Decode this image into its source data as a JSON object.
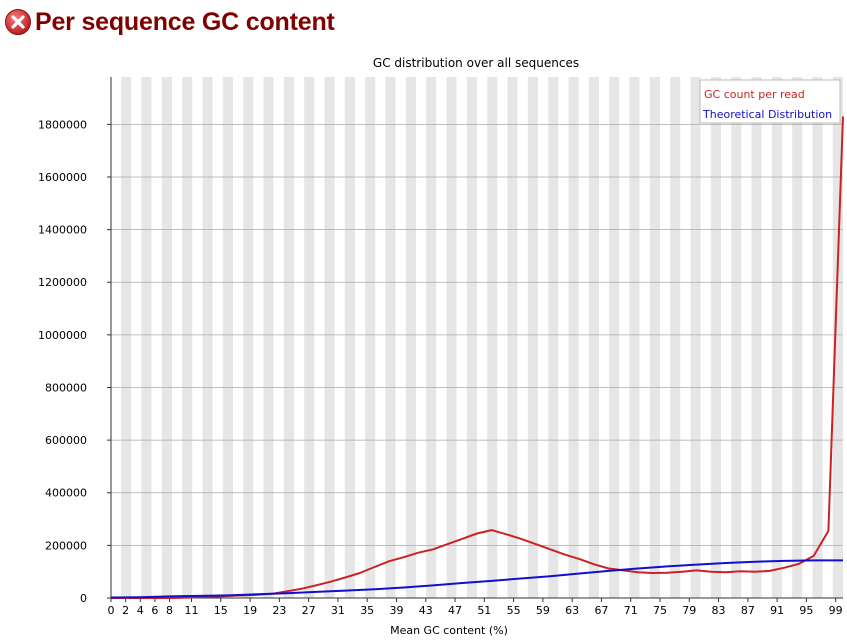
{
  "header": {
    "title": "Per sequence GC content",
    "status_icon": "error-icon",
    "status_color": "#cc2222"
  },
  "chart_data": {
    "type": "line",
    "title": "GC distribution over all sequences",
    "xlabel": "Mean GC content (%)",
    "ylabel": "",
    "xlim": [
      0,
      100
    ],
    "ylim": [
      0,
      1980000
    ],
    "grid": true,
    "legend_position": "top-right",
    "yticks": [
      0,
      200000,
      400000,
      600000,
      800000,
      1000000,
      1200000,
      1400000,
      1600000,
      1800000
    ],
    "xtick_labels": [
      "0",
      "2",
      "4",
      "6",
      "8",
      "11",
      "15",
      "19",
      "23",
      "27",
      "31",
      "35",
      "39",
      "43",
      "47",
      "51",
      "55",
      "59",
      "63",
      "67",
      "71",
      "75",
      "79",
      "83",
      "87",
      "91",
      "95",
      "99"
    ],
    "series": [
      {
        "name": "GC count per read",
        "color": "#cc2222",
        "x": [
          0,
          2,
          4,
          6,
          8,
          10,
          12,
          14,
          16,
          18,
          20,
          22,
          24,
          26,
          28,
          30,
          32,
          34,
          36,
          38,
          40,
          42,
          44,
          46,
          48,
          50,
          52,
          54,
          56,
          58,
          60,
          62,
          64,
          66,
          68,
          70,
          72,
          74,
          76,
          78,
          80,
          82,
          84,
          86,
          88,
          90,
          92,
          94,
          96,
          98,
          100
        ],
        "y": [
          0,
          0,
          0,
          0,
          0,
          1000,
          3000,
          5000,
          8000,
          10000,
          12000,
          16000,
          25000,
          35000,
          48000,
          62000,
          78000,
          95000,
          118000,
          140000,
          155000,
          172000,
          185000,
          205000,
          225000,
          245000,
          258000,
          242000,
          225000,
          205000,
          185000,
          165000,
          148000,
          128000,
          112000,
          105000,
          98000,
          95000,
          96000,
          100000,
          105000,
          100000,
          98000,
          102000,
          100000,
          103000,
          115000,
          130000,
          160000,
          255000,
          1830000
        ]
      },
      {
        "name": "Theoretical Distribution",
        "color": "#1010cc",
        "x": [
          0,
          4,
          8,
          12,
          16,
          20,
          24,
          28,
          32,
          36,
          40,
          44,
          48,
          52,
          56,
          60,
          64,
          68,
          72,
          76,
          80,
          84,
          88,
          92,
          96,
          100
        ],
        "y": [
          2000,
          3000,
          6000,
          8000,
          10000,
          14000,
          18000,
          23000,
          28000,
          33000,
          40000,
          48000,
          57000,
          65000,
          74000,
          83000,
          93000,
          103000,
          112000,
          120000,
          127000,
          133000,
          138000,
          141000,
          143000,
          143000
        ]
      }
    ]
  }
}
